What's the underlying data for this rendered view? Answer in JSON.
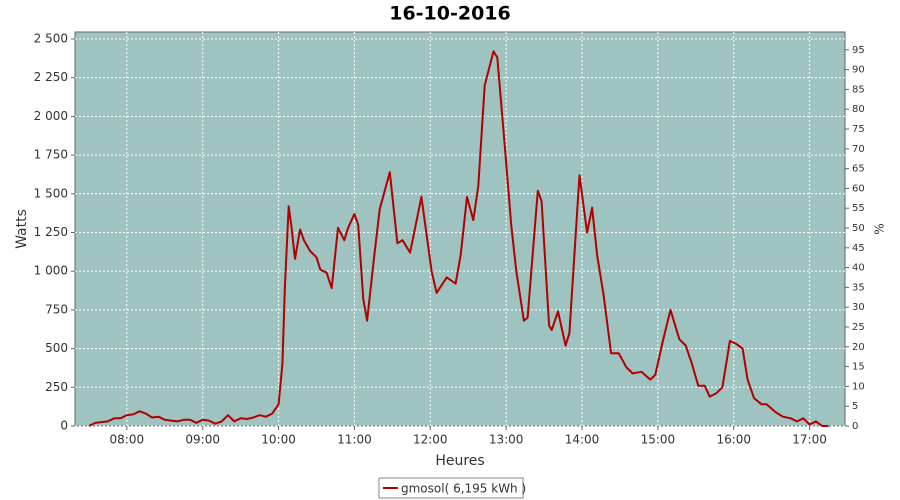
{
  "chart_data": {
    "type": "line",
    "title": "16-10-2016",
    "x_label": "Heures",
    "y_label": "Watts",
    "y2_label": "%",
    "x": [
      "07:30",
      "07:35",
      "07:40",
      "07:45",
      "07:50",
      "07:55",
      "08:00",
      "08:05",
      "08:10",
      "08:15",
      "08:20",
      "08:25",
      "08:30",
      "08:35",
      "08:40",
      "08:45",
      "08:50",
      "08:55",
      "09:00",
      "09:05",
      "09:10",
      "09:15",
      "09:20",
      "09:25",
      "09:30",
      "09:35",
      "09:40",
      "09:45",
      "09:50",
      "09:55",
      "10:00",
      "10:03",
      "10:05",
      "10:08",
      "10:10",
      "10:13",
      "10:17",
      "10:20",
      "10:25",
      "10:30",
      "10:33",
      "10:38",
      "10:42",
      "10:47",
      "10:52",
      "10:55",
      "11:00",
      "11:03",
      "11:07",
      "11:10",
      "11:15",
      "11:20",
      "11:28",
      "11:34",
      "11:38",
      "11:44",
      "11:53",
      "12:01",
      "12:05",
      "12:13",
      "12:20",
      "12:24",
      "12:29",
      "12:34",
      "12:38",
      "12:43",
      "12:50",
      "12:53",
      "12:59",
      "13:04",
      "13:08",
      "13:14",
      "13:17",
      "13:25",
      "13:28",
      "13:34",
      "13:36",
      "13:41",
      "13:47",
      "13:50",
      "13:58",
      "14:04",
      "14:08",
      "14:12",
      "14:17",
      "14:23",
      "14:29",
      "14:35",
      "14:40",
      "14:47",
      "14:54",
      "14:58",
      "15:04",
      "15:10",
      "15:17",
      "15:22",
      "15:27",
      "15:32",
      "15:37",
      "15:41",
      "15:46",
      "15:51",
      "15:57",
      "16:02",
      "16:07",
      "16:11",
      "16:16",
      "16:22",
      "16:26",
      "16:33",
      "16:39",
      "16:45",
      "16:50",
      "16:55",
      "17:00",
      "17:05",
      "17:10",
      "17:15"
    ],
    "series": [
      {
        "name": "gmosol( 6,195 kWh )",
        "color": "#b00000",
        "values": [
          0,
          20,
          25,
          30,
          50,
          50,
          70,
          75,
          95,
          80,
          55,
          60,
          40,
          35,
          30,
          40,
          40,
          20,
          40,
          35,
          15,
          30,
          70,
          30,
          50,
          45,
          55,
          70,
          60,
          80,
          140,
          400,
          900,
          1420,
          1300,
          1080,
          1270,
          1200,
          1130,
          1090,
          1010,
          990,
          890,
          1280,
          1200,
          1280,
          1370,
          1300,
          820,
          680,
          1050,
          1400,
          1640,
          1180,
          1200,
          1120,
          1480,
          1000,
          860,
          960,
          920,
          1100,
          1480,
          1330,
          1550,
          2200,
          2420,
          2380,
          1800,
          1300,
          1000,
          680,
          700,
          1520,
          1450,
          650,
          620,
          740,
          520,
          600,
          1620,
          1250,
          1410,
          1100,
          850,
          470,
          470,
          380,
          340,
          350,
          300,
          330,
          550,
          750,
          560,
          520,
          400,
          260,
          260,
          190,
          210,
          250,
          550,
          530,
          500,
          300,
          180,
          140,
          140,
          90,
          60,
          50,
          30,
          50,
          10,
          30,
          0,
          0
        ]
      }
    ],
    "xlim": [
      "07:19",
      "17:28"
    ],
    "xticks": [
      "08:00",
      "09:00",
      "10:00",
      "11:00",
      "12:00",
      "13:00",
      "14:00",
      "15:00",
      "16:00",
      "17:00"
    ],
    "ylim": [
      0,
      2545
    ],
    "yticks": [
      0,
      250,
      500,
      750,
      {
        "value": 1000,
        "label": "1 000"
      },
      {
        "value": 1250,
        "label": "1 250"
      },
      {
        "value": 1500,
        "label": "1 500"
      },
      {
        "value": 1750,
        "label": "1 750"
      },
      {
        "value": 2000,
        "label": "2 000"
      },
      {
        "value": 2250,
        "label": "2 250"
      },
      {
        "value": 2500,
        "label": "2 500"
      }
    ],
    "y2lim": [
      0,
      99.5
    ],
    "y2ticks": [
      0,
      5,
      10,
      15,
      20,
      25,
      30,
      35,
      40,
      45,
      50,
      55,
      60,
      65,
      70,
      75,
      80,
      85,
      90,
      95
    ],
    "grid": true,
    "background": "#9fc3c0"
  }
}
